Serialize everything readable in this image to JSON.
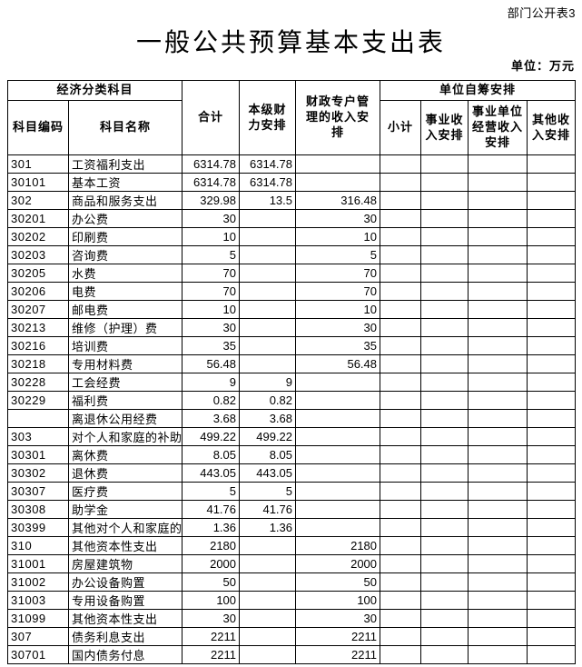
{
  "page": {
    "corner_note": "部门公开表3",
    "title": "一般公共预算基本支出表",
    "unit_note": "单位：万元"
  },
  "colors": {
    "background": "#ffffff",
    "border": "#000000",
    "text": "#000000"
  },
  "table": {
    "header": {
      "economic_category": "经济分类科目",
      "code": "科目编码",
      "name": "科目名称",
      "total": "合计",
      "own_level": "本级财力安排",
      "fiscal_special": "财政专户管理的收入安排",
      "self_raised": "单位自筹安排",
      "subtotal": "小计",
      "business_income": "事业收入安排",
      "operating_income": "事业单位经营收入安排",
      "other_income": "其他收入安排"
    },
    "rows": [
      [
        "301",
        "工资福利支出",
        "6314.78",
        "6314.78",
        "",
        "",
        "",
        "",
        ""
      ],
      [
        "30101",
        "基本工资",
        "6314.78",
        "6314.78",
        "",
        "",
        "",
        "",
        ""
      ],
      [
        "302",
        "商品和服务支出",
        "329.98",
        "13.5",
        "316.48",
        "",
        "",
        "",
        ""
      ],
      [
        "30201",
        "办公费",
        "30",
        "",
        "30",
        "",
        "",
        "",
        ""
      ],
      [
        "30202",
        "印刷费",
        "10",
        "",
        "10",
        "",
        "",
        "",
        ""
      ],
      [
        "30203",
        "咨询费",
        "5",
        "",
        "5",
        "",
        "",
        "",
        ""
      ],
      [
        "30205",
        "水费",
        "70",
        "",
        "70",
        "",
        "",
        "",
        ""
      ],
      [
        "30206",
        "电费",
        "70",
        "",
        "70",
        "",
        "",
        "",
        ""
      ],
      [
        "30207",
        "邮电费",
        "10",
        "",
        "10",
        "",
        "",
        "",
        ""
      ],
      [
        "30213",
        "维修（护理）费",
        "30",
        "",
        "30",
        "",
        "",
        "",
        ""
      ],
      [
        "30216",
        "培训费",
        "35",
        "",
        "35",
        "",
        "",
        "",
        ""
      ],
      [
        "30218",
        "专用材料费",
        "56.48",
        "",
        "56.48",
        "",
        "",
        "",
        ""
      ],
      [
        "30228",
        "工会经费",
        "9",
        "9",
        "",
        "",
        "",
        "",
        ""
      ],
      [
        "30229",
        "福利费",
        "0.82",
        "0.82",
        "",
        "",
        "",
        "",
        ""
      ],
      [
        "",
        "离退休公用经费",
        "3.68",
        "3.68",
        "",
        "",
        "",
        "",
        ""
      ],
      [
        "303",
        "对个人和家庭的补助",
        "499.22",
        "499.22",
        "",
        "",
        "",
        "",
        ""
      ],
      [
        "30301",
        "离休费",
        "8.05",
        "8.05",
        "",
        "",
        "",
        "",
        ""
      ],
      [
        "30302",
        "退休费",
        "443.05",
        "443.05",
        "",
        "",
        "",
        "",
        ""
      ],
      [
        "30307",
        "医疗费",
        "5",
        "5",
        "",
        "",
        "",
        "",
        ""
      ],
      [
        "30308",
        "助学金",
        "41.76",
        "41.76",
        "",
        "",
        "",
        "",
        ""
      ],
      [
        "30399",
        "其他对个人和家庭的",
        "1.36",
        "1.36",
        "",
        "",
        "",
        "",
        ""
      ],
      [
        "310",
        "其他资本性支出",
        "2180",
        "",
        "2180",
        "",
        "",
        "",
        ""
      ],
      [
        "31001",
        "房屋建筑物",
        "2000",
        "",
        "2000",
        "",
        "",
        "",
        ""
      ],
      [
        "31002",
        "办公设备购置",
        "50",
        "",
        "50",
        "",
        "",
        "",
        ""
      ],
      [
        "31003",
        "专用设备购置",
        "100",
        "",
        "100",
        "",
        "",
        "",
        ""
      ],
      [
        "31099",
        "其他资本性支出",
        "30",
        "",
        "30",
        "",
        "",
        "",
        ""
      ],
      [
        "307",
        "债务利息支出",
        "2211",
        "",
        "2211",
        "",
        "",
        "",
        ""
      ],
      [
        "30701",
        "国内债务付息",
        "2211",
        "",
        "2211",
        "",
        "",
        "",
        ""
      ]
    ]
  }
}
